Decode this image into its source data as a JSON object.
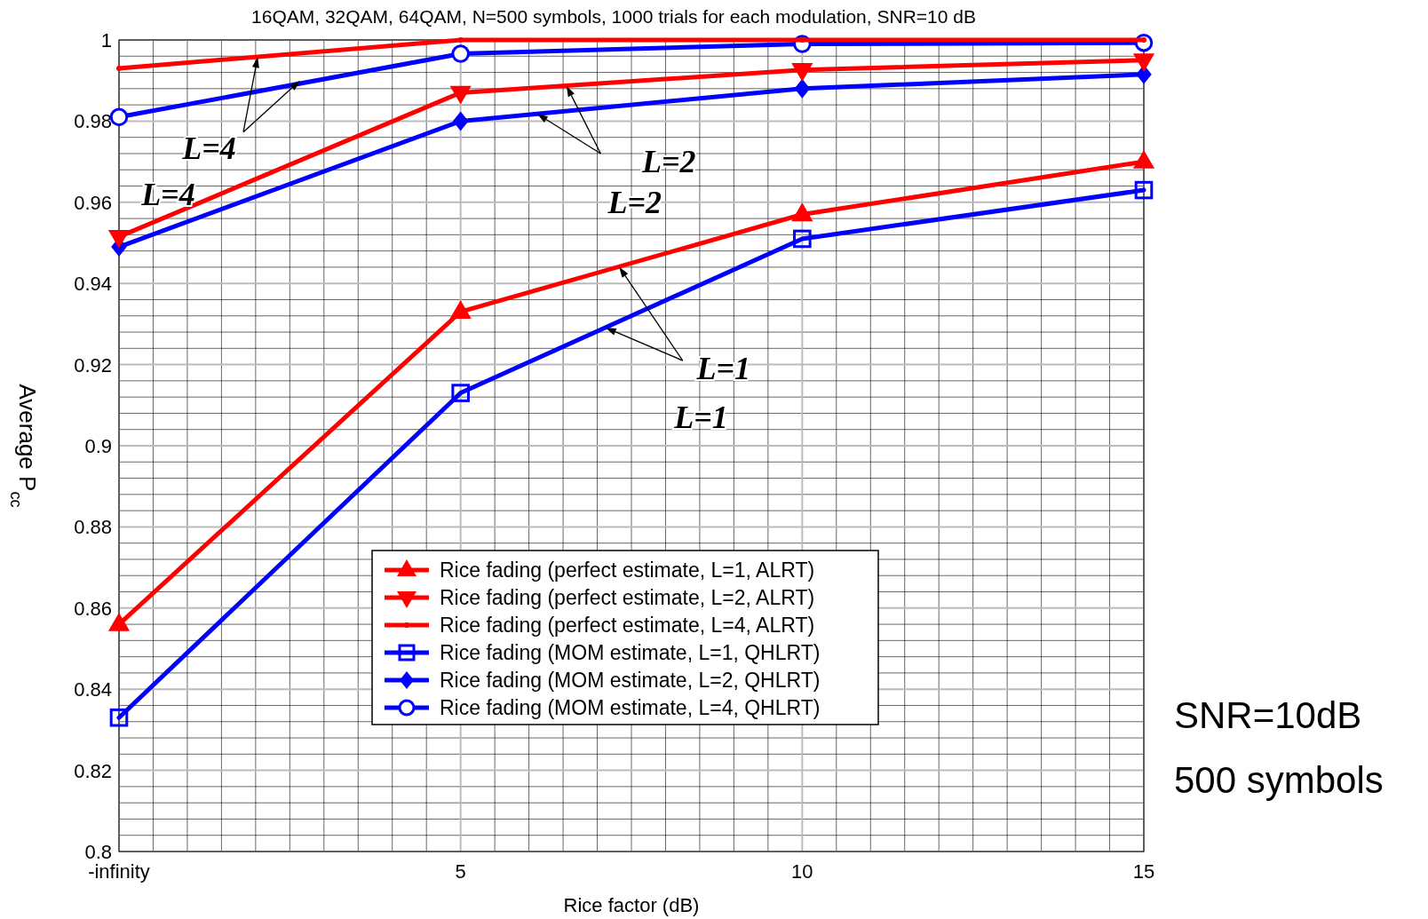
{
  "chart_data": {
    "type": "line",
    "title": "16QAM, 32QAM, 64QAM, N=500 symbols, 1000 trials for each modulation, SNR=10 dB",
    "xlabel": "Rice factor (dB)",
    "ylabel": "Average P$_{cc}$",
    "x": [
      0,
      5,
      10,
      15
    ],
    "xlim": [
      0,
      15
    ],
    "xticks": [
      {
        "value": 0,
        "label": "-infinity"
      },
      5,
      10,
      15
    ],
    "ylim": [
      0.8,
      1
    ],
    "yticks": [
      0.8,
      0.82,
      0.84,
      0.86,
      0.88,
      0.9,
      0.92,
      0.94,
      0.96,
      0.98,
      1
    ],
    "grid": true,
    "legend": "bottom",
    "line_style": "solid",
    "series": [
      {
        "name": "Rice fading (perfect estimate, L=1, ALRT)",
        "color": "#ff0000",
        "marker": "triangle",
        "values": [
          0.856,
          0.933,
          0.957,
          0.97
        ]
      },
      {
        "name": "Rice fading (perfect estimate, L=2, ALRT)",
        "color": "#ff0000",
        "marker": "triangle-down",
        "values": [
          0.9515,
          0.987,
          0.9926,
          0.995
        ]
      },
      {
        "name": "Rice fading (perfect estimate, L=4, ALRT)",
        "color": "#ff0000",
        "marker": "dot",
        "values": [
          0.993,
          1.0,
          1.0,
          1.0
        ]
      },
      {
        "name": "Rice fading (MOM estimate, L=1, QHLRT)",
        "color": "#0000ff",
        "marker": "square",
        "values": [
          0.833,
          0.913,
          0.951,
          0.963
        ]
      },
      {
        "name": "Rice fading (MOM estimate, L=2, QHLRT)",
        "color": "#0000ff",
        "marker": "diamond",
        "values": [
          0.949,
          0.98,
          0.988,
          0.9915
        ]
      },
      {
        "name": "Rice fading (MOM estimate, L=4, QHLRT)",
        "color": "#0000ff",
        "marker": "circle",
        "values": [
          0.981,
          0.9966,
          0.999,
          0.9993
        ]
      }
    ],
    "annotations": [
      {
        "text": "L=4",
        "x": 2.03,
        "y": 0.9958
      },
      "L=4",
      {
        "text": "L=2",
        "x": 6.55,
        "y": 0.9887
      },
      "L=2",
      {
        "text": "L=1",
        "x": 7.12,
        "y": 0.9291
      },
      "L=1",
      "SNR=10dB",
      "500 symbols"
    ]
  }
}
